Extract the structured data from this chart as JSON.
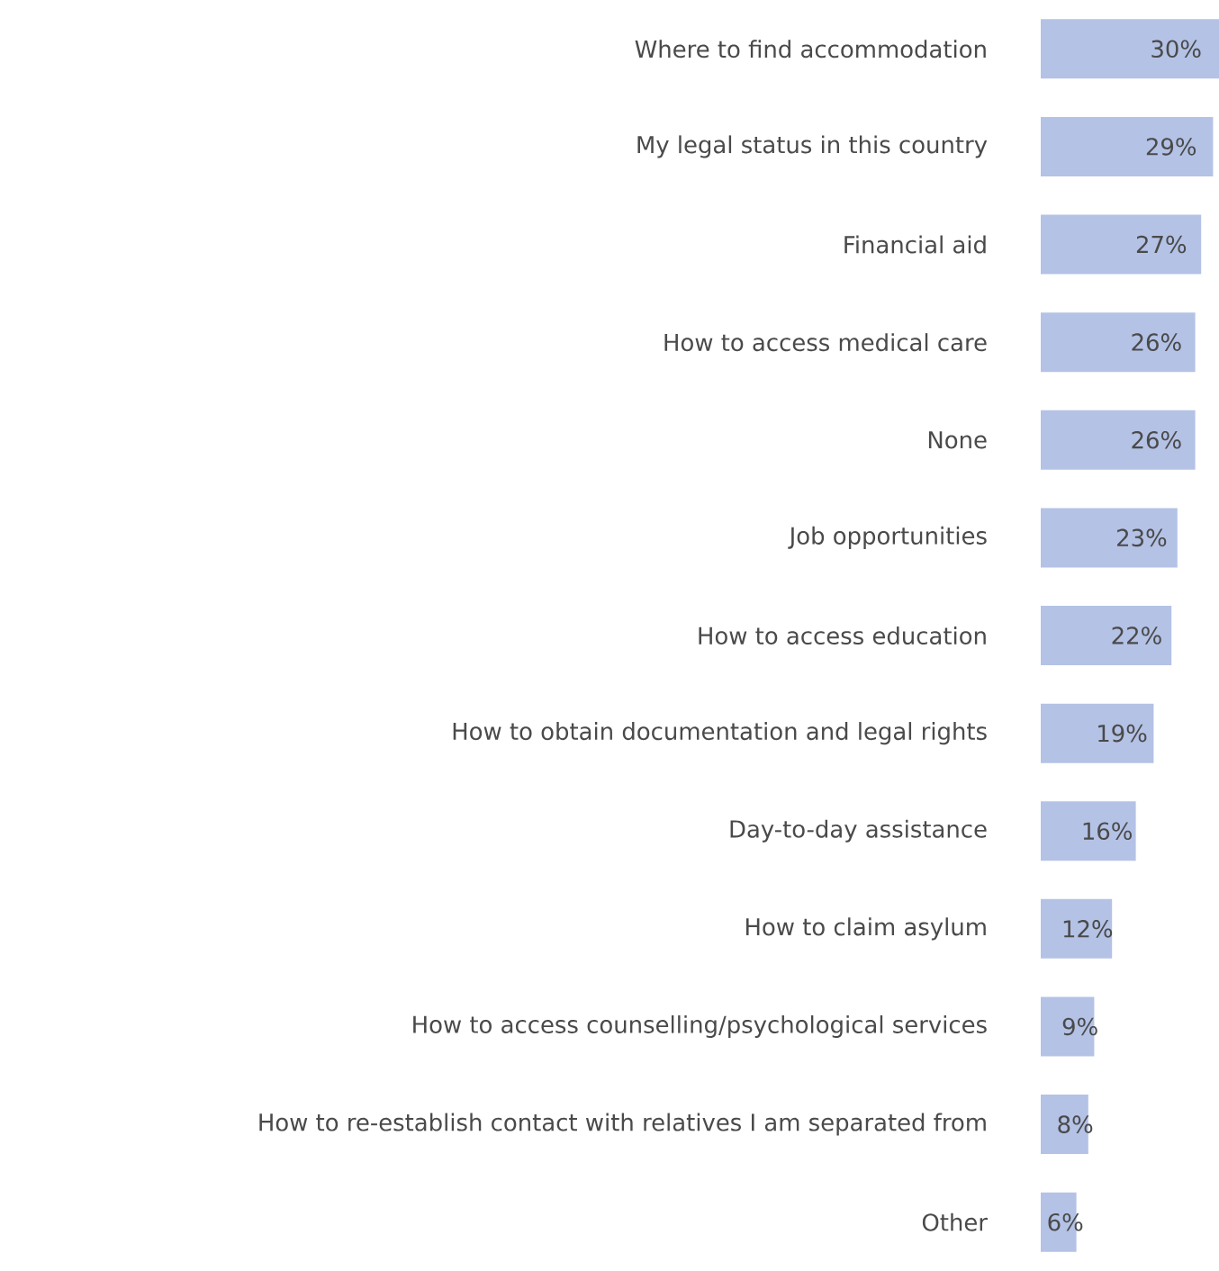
{
  "chart_data": {
    "type": "bar",
    "orientation": "horizontal",
    "color": "#b4c2e6",
    "categories": [
      "Where to find accommodation",
      "My legal status in this country",
      "Financial aid",
      "How to access medical care",
      "None",
      "Job opportunities",
      "How to access education",
      "How to obtain documentation and legal rights",
      "Day-to-day assistance",
      "How to claim asylum",
      "How to access counselling/psychological services",
      "How to re-establish contact with relatives I am separated from",
      "Other"
    ],
    "values": [
      30,
      29,
      27,
      26,
      26,
      23,
      22,
      19,
      16,
      12,
      9,
      8,
      6
    ],
    "value_labels": [
      "30%",
      "29%",
      "27%",
      "26%",
      "26%",
      "23%",
      "22%",
      "19%",
      "16%",
      "12%",
      "9%",
      "8%",
      "6%"
    ]
  }
}
